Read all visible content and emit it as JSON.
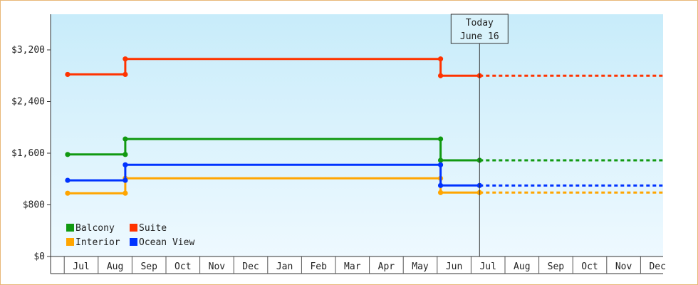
{
  "chart_data": {
    "type": "line",
    "step": true,
    "yticks": [
      "$0",
      "$800",
      "$1,600",
      "$2,400",
      "$3,200"
    ],
    "ylim": [
      0,
      3200
    ],
    "xlabels": [
      "Jul",
      "Aug",
      "Sep",
      "Oct",
      "Nov",
      "Dec",
      "Jan",
      "Feb",
      "Mar",
      "Apr",
      "May",
      "Jun",
      "Jul",
      "Aug",
      "Sep",
      "Oct",
      "Nov",
      "Dec"
    ],
    "today": {
      "label_line1": "Today",
      "label_line2": "June 16",
      "x": 11.75
    },
    "grid": false,
    "legend_position": "bottom-left",
    "series": [
      {
        "name": "Balcony",
        "color": "#119911",
        "points": [
          [
            -0.4,
            1580
          ],
          [
            1.3,
            1580
          ],
          [
            1.3,
            1820
          ],
          [
            10.6,
            1820
          ],
          [
            10.6,
            1490
          ],
          [
            11.75,
            1490
          ]
        ],
        "projection": 1490
      },
      {
        "name": "Suite",
        "color": "#ff3300",
        "points": [
          [
            -0.4,
            2820
          ],
          [
            1.3,
            2820
          ],
          [
            1.3,
            3060
          ],
          [
            10.6,
            3060
          ],
          [
            10.6,
            2800
          ],
          [
            11.75,
            2800
          ]
        ],
        "projection": 2800
      },
      {
        "name": "Interior",
        "color": "#ffa500",
        "points": [
          [
            -0.4,
            980
          ],
          [
            1.3,
            980
          ],
          [
            1.3,
            1210
          ],
          [
            10.6,
            1210
          ],
          [
            10.6,
            990
          ],
          [
            11.75,
            990
          ]
        ],
        "projection": 990
      },
      {
        "name": "Ocean View",
        "color": "#0033ff",
        "points": [
          [
            -0.4,
            1180
          ],
          [
            1.3,
            1180
          ],
          [
            1.3,
            1420
          ],
          [
            10.6,
            1420
          ],
          [
            10.6,
            1100
          ],
          [
            11.75,
            1100
          ]
        ],
        "projection": 1100
      }
    ]
  }
}
